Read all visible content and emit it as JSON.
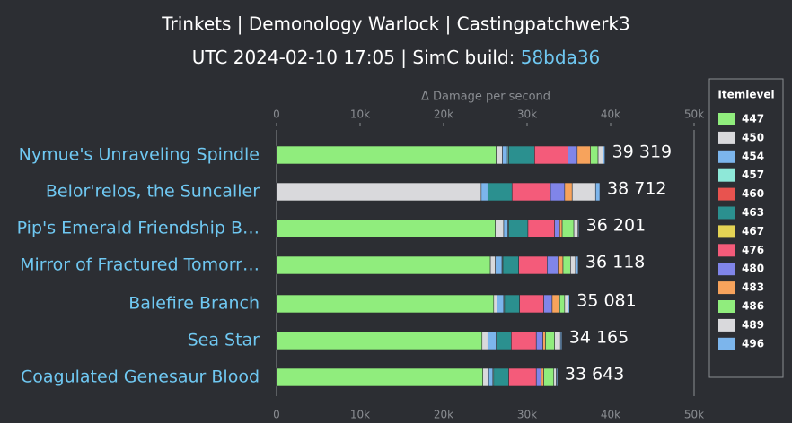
{
  "chart_data": {
    "type": "stacked-hbar",
    "title": "Trinkets | Demonology Warlock | Castingpatchwerk3",
    "subtitle": "UTC 2024-02-10 17:05 | SimC build: ",
    "build": "58bda36",
    "x_label": "Δ Damage per second",
    "legend_title": "Itemlevel",
    "categories": [
      "Nymue's Unraveling Spindle",
      "Belor'relos, the Suncaller",
      "Pip's Emerald Friendship B…",
      "Mirror of Fractured Tomorr…",
      "Balefire Branch",
      "Sea Star",
      "Coagulated Genesaur Blood"
    ],
    "totals": [
      39319,
      38712,
      36201,
      36118,
      35081,
      34165,
      33643
    ],
    "total_labels": [
      "39 319",
      "38 712",
      "36 201",
      "36 118",
      "35 081",
      "34 165",
      "33 643"
    ],
    "xlim": [
      0,
      50000
    ],
    "xticks": [
      {
        "value": 0,
        "label": "0"
      },
      {
        "value": 10000,
        "label": "10k"
      },
      {
        "value": 20000,
        "label": "20k"
      },
      {
        "value": 30000,
        "label": "30k"
      },
      {
        "value": 40000,
        "label": "40k"
      },
      {
        "value": 50000,
        "label": "50k"
      }
    ],
    "series": [
      {
        "name": "447",
        "color": "#90ed7d",
        "values": [
          26300,
          0,
          26200,
          25600,
          26000,
          24600,
          24700
        ]
      },
      {
        "name": "450",
        "color": "#d9d9dc",
        "values": [
          750,
          24500,
          1000,
          600,
          400,
          700,
          700
        ]
      },
      {
        "name": "454",
        "color": "#7cb5ec",
        "values": [
          600,
          800,
          500,
          800,
          800,
          1000,
          500
        ]
      },
      {
        "name": "457",
        "color": "#8ee8d8",
        "values": [
          150,
          0,
          100,
          100,
          100,
          100,
          100
        ]
      },
      {
        "name": "460",
        "color": "#e8534f",
        "values": [
          0,
          0,
          0,
          0,
          0,
          0,
          0
        ]
      },
      {
        "name": "463",
        "color": "#2b908f",
        "values": [
          3100,
          2900,
          2300,
          1900,
          1800,
          1700,
          1800
        ]
      },
      {
        "name": "467",
        "color": "#e4d354",
        "values": [
          0,
          0,
          0,
          0,
          0,
          0,
          0
        ]
      },
      {
        "name": "476",
        "color": "#f45b7a",
        "values": [
          4000,
          4600,
          3200,
          3400,
          2900,
          3000,
          3300
        ]
      },
      {
        "name": "480",
        "color": "#8085e9",
        "values": [
          1100,
          1700,
          600,
          1300,
          1000,
          800,
          600
        ]
      },
      {
        "name": "483",
        "color": "#f7a35c",
        "values": [
          1600,
          900,
          300,
          600,
          900,
          300,
          300
        ]
      },
      {
        "name": "486",
        "color": "#90ed7d",
        "values": [
          900,
          0,
          1400,
          900,
          600,
          1100,
          1200
        ]
      },
      {
        "name": "489",
        "color": "#d9d9dc",
        "values": [
          600,
          2800,
          500,
          600,
          400,
          700,
          300
        ]
      },
      {
        "name": "496",
        "color": "#7cb5ec",
        "values": [
          219,
          512,
          101,
          318,
          181,
          165,
          143
        ]
      }
    ]
  }
}
